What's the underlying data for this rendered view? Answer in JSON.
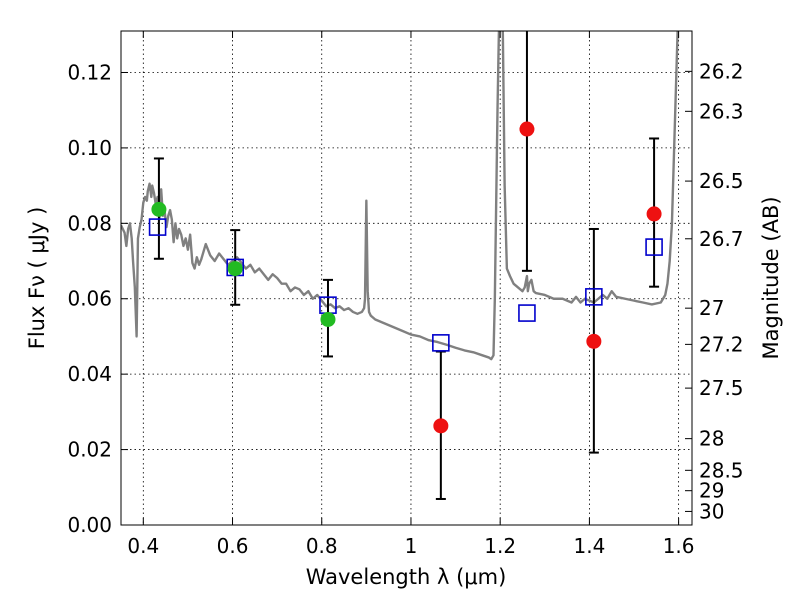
{
  "chart_data": {
    "type": "scatter",
    "xlabel": "Wavelength  λ (μm)",
    "ylabel": "Flux  Fν  ( μJy )",
    "y2label": "Magnitude (AB)",
    "xlim": [
      0.35,
      1.63
    ],
    "ylim": [
      0.0,
      0.131
    ],
    "grid": true,
    "x_ticks": [
      {
        "value": 0.4,
        "label": "0.4"
      },
      {
        "value": 0.6,
        "label": "0.6"
      },
      {
        "value": 0.8,
        "label": "0.8"
      },
      {
        "value": 1.0,
        "label": "1"
      },
      {
        "value": 1.2,
        "label": "1.2"
      },
      {
        "value": 1.4,
        "label": "1.4"
      },
      {
        "value": 1.6,
        "label": "1.6"
      }
    ],
    "y_ticks": [
      {
        "value": 0.0,
        "label": "0.00"
      },
      {
        "value": 0.02,
        "label": "0.02"
      },
      {
        "value": 0.04,
        "label": "0.04"
      },
      {
        "value": 0.06,
        "label": "0.06"
      },
      {
        "value": 0.08,
        "label": "0.08"
      },
      {
        "value": 0.1,
        "label": "0.10"
      },
      {
        "value": 0.12,
        "label": "0.12"
      }
    ],
    "magnitude_ticks": [
      {
        "label": "26.2",
        "flux": 0.1203
      },
      {
        "label": "26.3",
        "flux": 0.1097
      },
      {
        "label": "26.5",
        "flux": 0.0912
      },
      {
        "label": "26.7",
        "flux": 0.0759
      },
      {
        "label": "27",
        "flux": 0.0575
      },
      {
        "label": "27.2",
        "flux": 0.0479
      },
      {
        "label": "27.5",
        "flux": 0.0363
      },
      {
        "label": "28",
        "flux": 0.0229
      },
      {
        "label": "28.5",
        "flux": 0.0145
      },
      {
        "label": "29",
        "flux": 0.0091
      },
      {
        "label": "30",
        "flux": 0.0036
      }
    ],
    "observed": {
      "x": [
        0.435,
        0.606,
        0.814,
        1.067,
        1.26,
        1.41,
        1.545
      ],
      "y": [
        0.0837,
        0.068,
        0.0545,
        0.0263,
        0.105,
        0.0487,
        0.0825
      ],
      "err_low": [
        0.0706,
        0.0584,
        0.0447,
        0.0069,
        0.0674,
        0.0192,
        0.0632
      ],
      "err_high": [
        0.0972,
        0.0782,
        0.065,
        0.046,
        0.132,
        0.0785,
        0.1025
      ],
      "point_colors": [
        "#22bb22",
        "#22bb22",
        "#22bb22",
        "#ee1111",
        "#ee1111",
        "#ee1111",
        "#ee1111"
      ]
    },
    "model_points": {
      "x": [
        0.432,
        0.606,
        0.814,
        1.067,
        1.26,
        1.41,
        1.545
      ],
      "y": [
        0.079,
        0.0683,
        0.0583,
        0.0483,
        0.0562,
        0.0605,
        0.0737
      ],
      "color": "#0000cc"
    },
    "sed": {
      "color": "#808080",
      "x": [
        0.35,
        0.358,
        0.362,
        0.366,
        0.37,
        0.374,
        0.377,
        0.381,
        0.385,
        0.388,
        0.392,
        0.396,
        0.4,
        0.404,
        0.408,
        0.41,
        0.414,
        0.418,
        0.42,
        0.424,
        0.428,
        0.432,
        0.436,
        0.44,
        0.444,
        0.448,
        0.452,
        0.456,
        0.46,
        0.464,
        0.468,
        0.472,
        0.476,
        0.48,
        0.485,
        0.49,
        0.495,
        0.5,
        0.505,
        0.51,
        0.515,
        0.52,
        0.525,
        0.53,
        0.54,
        0.55,
        0.56,
        0.57,
        0.58,
        0.59,
        0.6,
        0.61,
        0.62,
        0.63,
        0.64,
        0.65,
        0.66,
        0.67,
        0.68,
        0.69,
        0.7,
        0.71,
        0.72,
        0.73,
        0.74,
        0.75,
        0.76,
        0.77,
        0.78,
        0.79,
        0.8,
        0.81,
        0.82,
        0.83,
        0.84,
        0.85,
        0.86,
        0.87,
        0.88,
        0.89,
        0.895,
        0.897,
        0.9,
        0.903,
        0.906,
        0.91,
        0.92,
        0.94,
        0.96,
        0.98,
        1.0,
        1.02,
        1.04,
        1.06,
        1.08,
        1.1,
        1.12,
        1.14,
        1.16,
        1.175,
        1.18,
        1.185,
        1.188,
        1.191,
        1.194,
        1.197,
        1.2,
        1.203,
        1.206,
        1.208,
        1.21,
        1.215,
        1.222,
        1.23,
        1.24,
        1.25,
        1.255,
        1.26,
        1.262,
        1.265,
        1.27,
        1.275,
        1.28,
        1.3,
        1.32,
        1.34,
        1.36,
        1.37,
        1.38,
        1.39,
        1.4,
        1.41,
        1.42,
        1.43,
        1.44,
        1.45,
        1.46,
        1.48,
        1.5,
        1.52,
        1.54,
        1.56,
        1.57,
        1.575,
        1.58,
        1.585,
        1.59,
        1.6,
        1.61,
        1.62
      ],
      "y": [
        0.0795,
        0.0775,
        0.074,
        0.0785,
        0.08,
        0.076,
        0.07,
        0.063,
        0.05,
        0.076,
        0.079,
        0.081,
        0.0855,
        0.087,
        0.086,
        0.0885,
        0.0905,
        0.087,
        0.09,
        0.088,
        0.085,
        0.087,
        0.081,
        0.089,
        0.082,
        0.083,
        0.079,
        0.082,
        0.0835,
        0.081,
        0.075,
        0.08,
        0.076,
        0.0785,
        0.077,
        0.074,
        0.076,
        0.073,
        0.077,
        0.0695,
        0.068,
        0.071,
        0.069,
        0.0705,
        0.0745,
        0.0715,
        0.07,
        0.072,
        0.0705,
        0.069,
        0.07,
        0.071,
        0.0695,
        0.068,
        0.069,
        0.067,
        0.068,
        0.0665,
        0.065,
        0.0665,
        0.0655,
        0.064,
        0.064,
        0.062,
        0.063,
        0.0625,
        0.061,
        0.062,
        0.06,
        0.061,
        0.0595,
        0.058,
        0.0585,
        0.0575,
        0.058,
        0.057,
        0.0575,
        0.0565,
        0.056,
        0.0565,
        0.0575,
        0.06,
        0.086,
        0.062,
        0.0565,
        0.0555,
        0.0545,
        0.0535,
        0.0525,
        0.0515,
        0.0505,
        0.05,
        0.049,
        0.0485,
        0.0478,
        0.047,
        0.0463,
        0.0458,
        0.045,
        0.0444,
        0.044,
        0.045,
        0.06,
        0.085,
        0.11,
        0.13,
        0.14,
        0.14,
        0.13,
        0.11,
        0.09,
        0.068,
        0.066,
        0.064,
        0.063,
        0.062,
        0.063,
        0.066,
        0.062,
        0.064,
        0.065,
        0.062,
        0.0615,
        0.061,
        0.06,
        0.06,
        0.059,
        0.0605,
        0.059,
        0.06,
        0.0595,
        0.059,
        0.06,
        0.061,
        0.06,
        0.062,
        0.0605,
        0.06,
        0.0595,
        0.059,
        0.0585,
        0.059,
        0.061,
        0.064,
        0.07,
        0.08,
        0.1,
        0.14,
        0.14,
        0.14
      ]
    }
  }
}
